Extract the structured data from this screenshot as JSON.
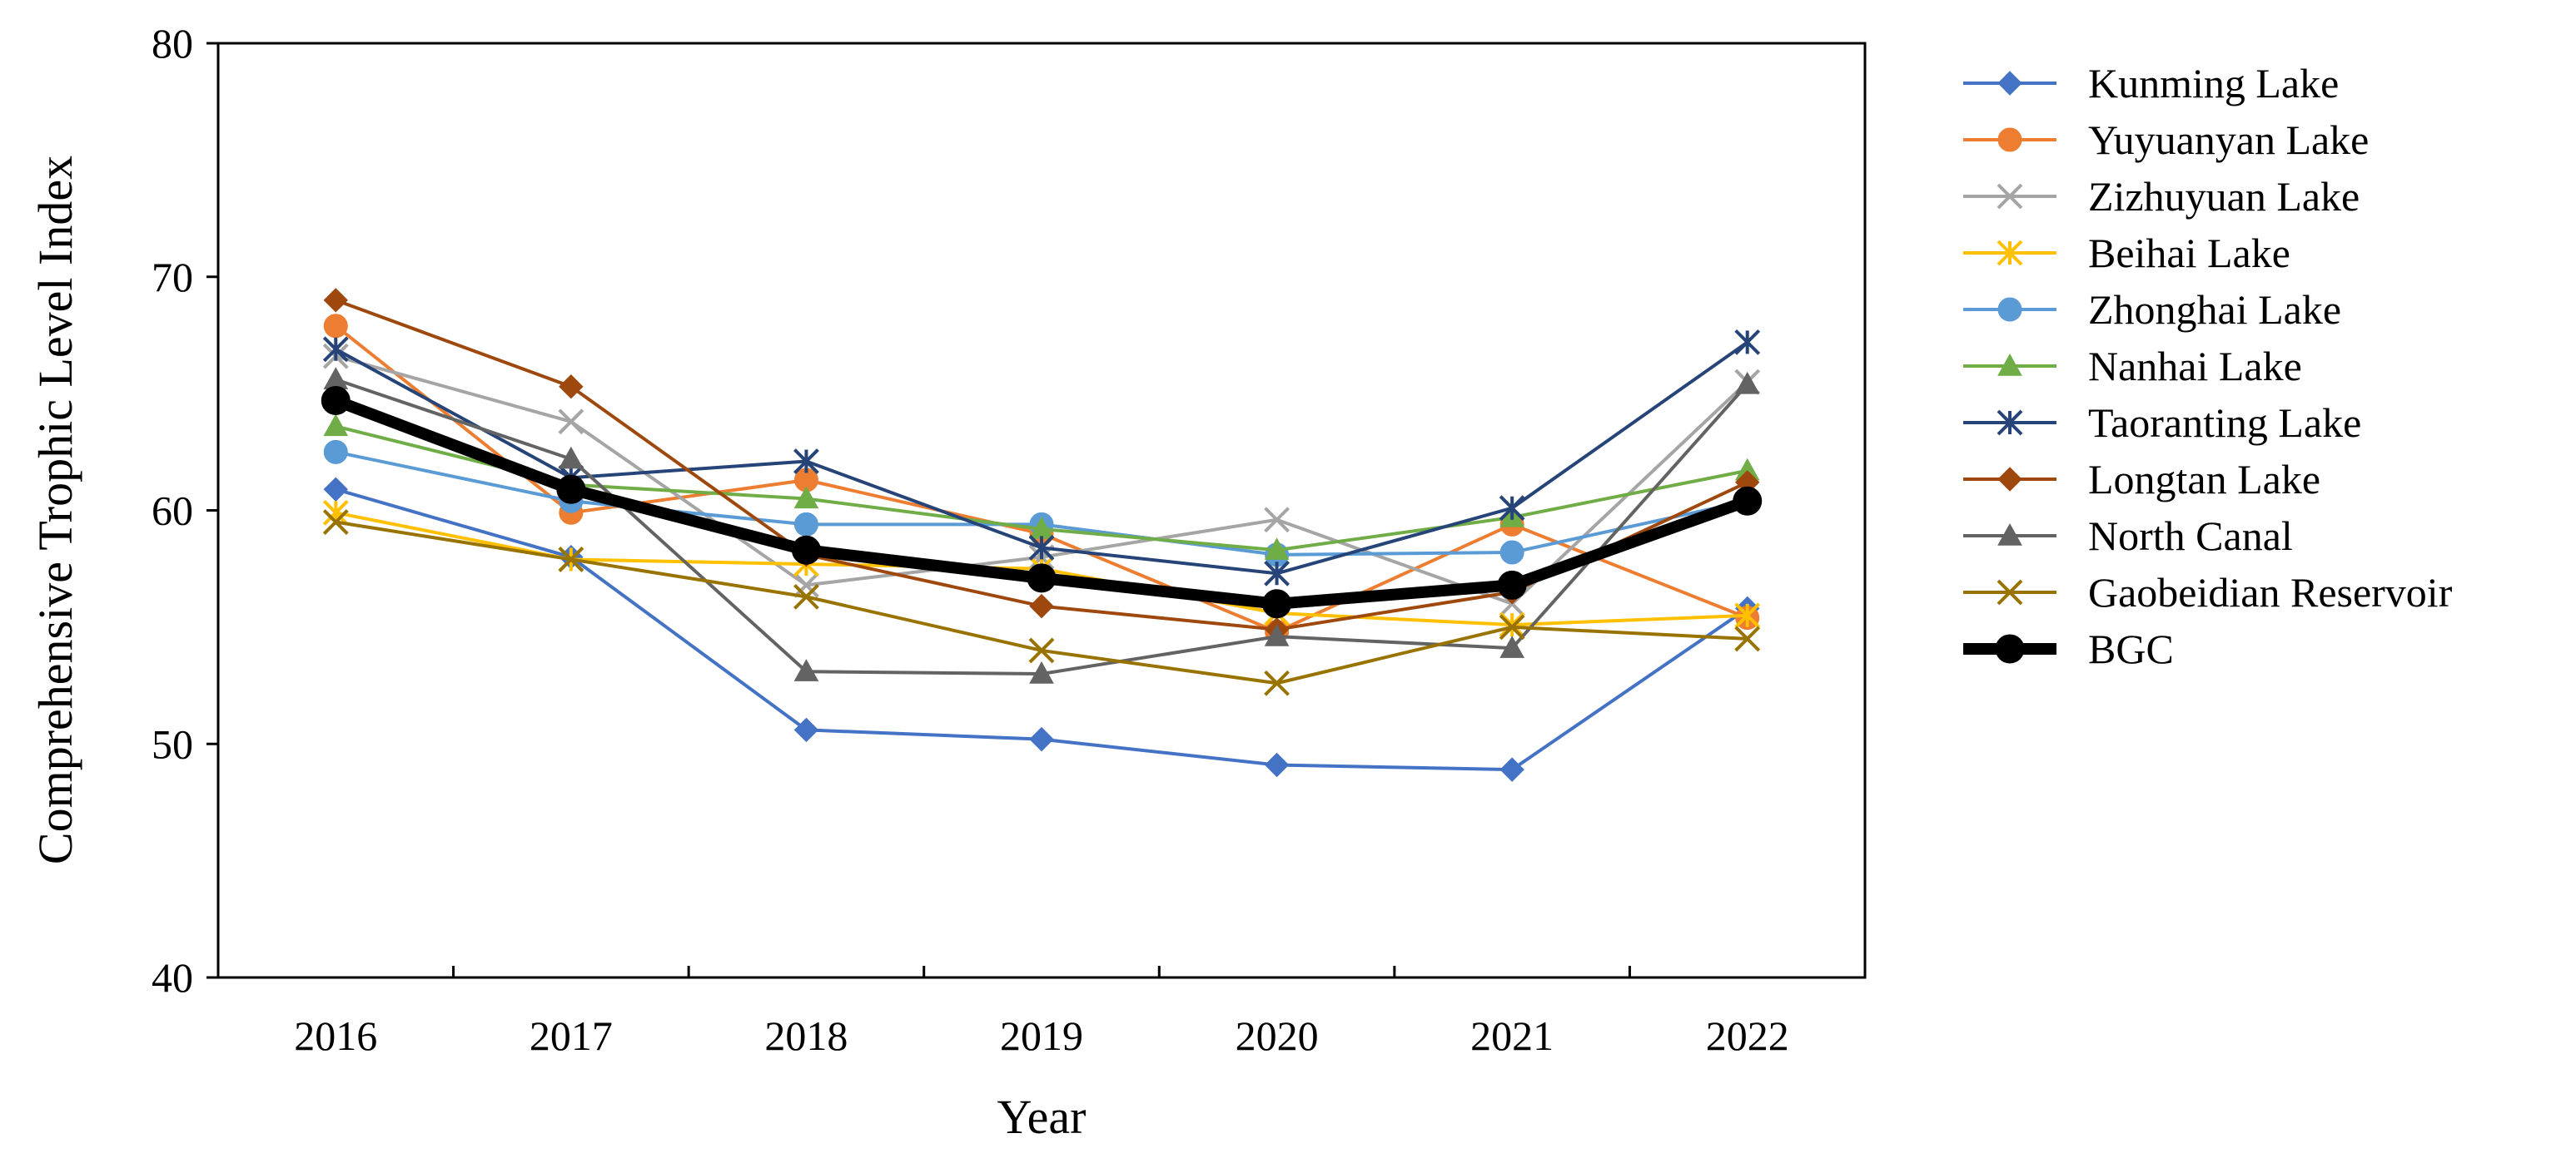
{
  "chart_data": {
    "type": "line",
    "title": "",
    "xlabel": "Year",
    "ylabel": "Comprehensive Trophic Level Index",
    "categories": [
      "2016",
      "2017",
      "2018",
      "2019",
      "2020",
      "2021",
      "2022"
    ],
    "ylim": [
      40,
      80
    ],
    "yticks": [
      40,
      50,
      60,
      70,
      80
    ],
    "grid": false,
    "legend_position": "right",
    "series": [
      {
        "name": "Kunming Lake",
        "color": "#4472C4",
        "marker": "diamond",
        "values": [
          60.9,
          58.0,
          50.6,
          50.2,
          49.1,
          48.9,
          55.8
        ]
      },
      {
        "name": "Yuyuanyan Lake",
        "color": "#ED7D31",
        "marker": "circle",
        "values": [
          67.9,
          59.9,
          61.3,
          59.0,
          54.8,
          59.4,
          55.4
        ]
      },
      {
        "name": "Zizhuyuan Lake",
        "color": "#A5A5A5",
        "marker": "x",
        "values": [
          66.6,
          63.8,
          56.8,
          58.0,
          59.6,
          56.0,
          65.5
        ]
      },
      {
        "name": "Beihai Lake",
        "color": "#FFC000",
        "marker": "asterisk",
        "values": [
          59.9,
          57.9,
          57.7,
          57.5,
          55.6,
          55.1,
          55.5
        ]
      },
      {
        "name": "Zhonghai Lake",
        "color": "#5B9BD5",
        "marker": "circle",
        "values": [
          62.5,
          60.4,
          59.4,
          59.4,
          58.1,
          58.2,
          60.4
        ]
      },
      {
        "name": "Nanhai Lake",
        "color": "#70AD47",
        "marker": "triangle",
        "values": [
          63.6,
          61.1,
          60.5,
          59.2,
          58.3,
          59.7,
          61.7
        ]
      },
      {
        "name": "Taoranting Lake",
        "color": "#264478",
        "marker": "asterisk",
        "values": [
          66.9,
          61.4,
          62.1,
          58.4,
          57.3,
          60.1,
          67.2
        ]
      },
      {
        "name": "Longtan Lake",
        "color": "#9E480E",
        "marker": "diamond",
        "values": [
          69.0,
          65.3,
          58.1,
          55.9,
          54.9,
          56.5,
          61.2
        ]
      },
      {
        "name": "North Canal",
        "color": "#636363",
        "marker": "triangle",
        "values": [
          65.6,
          62.2,
          53.1,
          53.0,
          54.6,
          54.1,
          65.4
        ]
      },
      {
        "name": "Gaobeidian Reservoir",
        "color": "#997300",
        "marker": "x",
        "values": [
          59.5,
          57.9,
          56.3,
          54.0,
          52.6,
          55.0,
          54.5
        ]
      },
      {
        "name": "BGC",
        "color": "#000000",
        "marker": "circle",
        "bold": true,
        "values": [
          64.7,
          60.9,
          58.3,
          57.1,
          56.0,
          56.8,
          60.4
        ]
      }
    ]
  }
}
